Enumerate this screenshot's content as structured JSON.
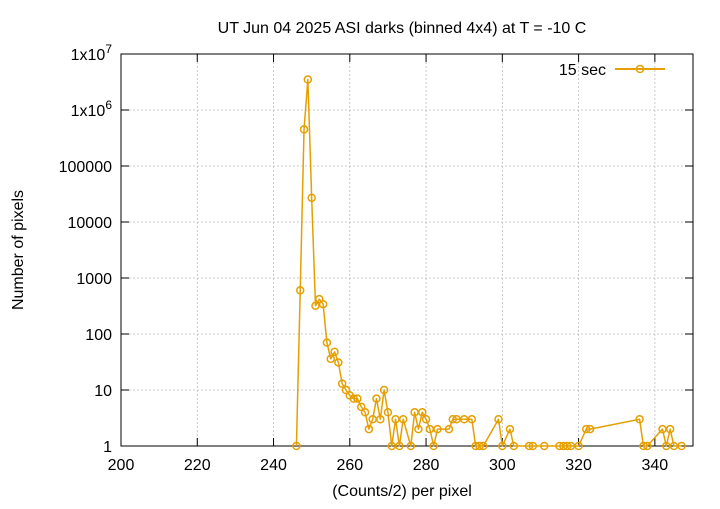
{
  "chart_data": {
    "type": "line",
    "title": "UT Jun 04 2025 ASI darks (binned 4x4) at T = -10 C",
    "xlabel": "(Counts/2) per pixel",
    "ylabel": "Number of pixels",
    "xlim": [
      200,
      350
    ],
    "ylim": [
      1,
      10000000
    ],
    "yscale": "log",
    "grid": true,
    "legend_position": "top-right",
    "x_ticks": [
      200,
      220,
      240,
      260,
      280,
      300,
      320,
      340
    ],
    "x_tick_labels": [
      "200",
      "220",
      "240",
      "260",
      "280",
      "300",
      "320",
      "340"
    ],
    "y_ticks": [
      1,
      10,
      100,
      1000,
      10000,
      100000,
      1000000,
      10000000
    ],
    "y_tick_labels": [
      {
        "base": "1",
        "exp": ""
      },
      {
        "base": "10",
        "exp": ""
      },
      {
        "base": "100",
        "exp": ""
      },
      {
        "base": "1000",
        "exp": ""
      },
      {
        "base": "10000",
        "exp": ""
      },
      {
        "base": "100000",
        "exp": ""
      },
      {
        "base": "1x10",
        "exp": "6"
      },
      {
        "base": "1x10",
        "exp": "7"
      }
    ],
    "series": [
      {
        "name": "15 sec",
        "color": "#e69f00",
        "marker": "circle",
        "points": [
          [
            246,
            1
          ],
          [
            247,
            600
          ],
          [
            248,
            450000
          ],
          [
            249,
            3500000
          ],
          [
            250,
            27000
          ],
          [
            251,
            320
          ],
          [
            252,
            420
          ],
          [
            253,
            340
          ],
          [
            254,
            70
          ],
          [
            255,
            36
          ],
          [
            256,
            48
          ],
          [
            257,
            31
          ],
          [
            258,
            13
          ],
          [
            259,
            10
          ],
          [
            260,
            8
          ],
          [
            261,
            7
          ],
          [
            262,
            7
          ],
          [
            263,
            5
          ],
          [
            264,
            4
          ],
          [
            265,
            2
          ],
          [
            266,
            3
          ],
          [
            267,
            7
          ],
          [
            268,
            3
          ],
          [
            269,
            10
          ],
          [
            270,
            4
          ],
          [
            271,
            1
          ],
          [
            272,
            3
          ],
          [
            273,
            1
          ],
          [
            274,
            3
          ],
          [
            276,
            1
          ],
          [
            277,
            4
          ],
          [
            278,
            2
          ],
          [
            279,
            4
          ],
          [
            280,
            3
          ],
          [
            281,
            2
          ],
          [
            282,
            1
          ],
          [
            283,
            2
          ],
          [
            286,
            2
          ],
          [
            287,
            3
          ],
          [
            288,
            3
          ],
          [
            290,
            3
          ],
          [
            292,
            3
          ],
          [
            293,
            1
          ],
          [
            294,
            1
          ],
          [
            295,
            1
          ],
          [
            299,
            3
          ],
          [
            300,
            1
          ],
          [
            302,
            2
          ],
          [
            303,
            1
          ],
          [
            307,
            1
          ],
          [
            308,
            1
          ],
          [
            311,
            1
          ],
          [
            315,
            1
          ],
          [
            316,
            1
          ],
          [
            317,
            1
          ],
          [
            318,
            1
          ],
          [
            320,
            1
          ],
          [
            322,
            2
          ],
          [
            323,
            2
          ],
          [
            336,
            3
          ],
          [
            337,
            1
          ],
          [
            338,
            1
          ],
          [
            342,
            2
          ],
          [
            343,
            1
          ],
          [
            344,
            2
          ],
          [
            345,
            1
          ],
          [
            347,
            1
          ]
        ]
      }
    ]
  }
}
